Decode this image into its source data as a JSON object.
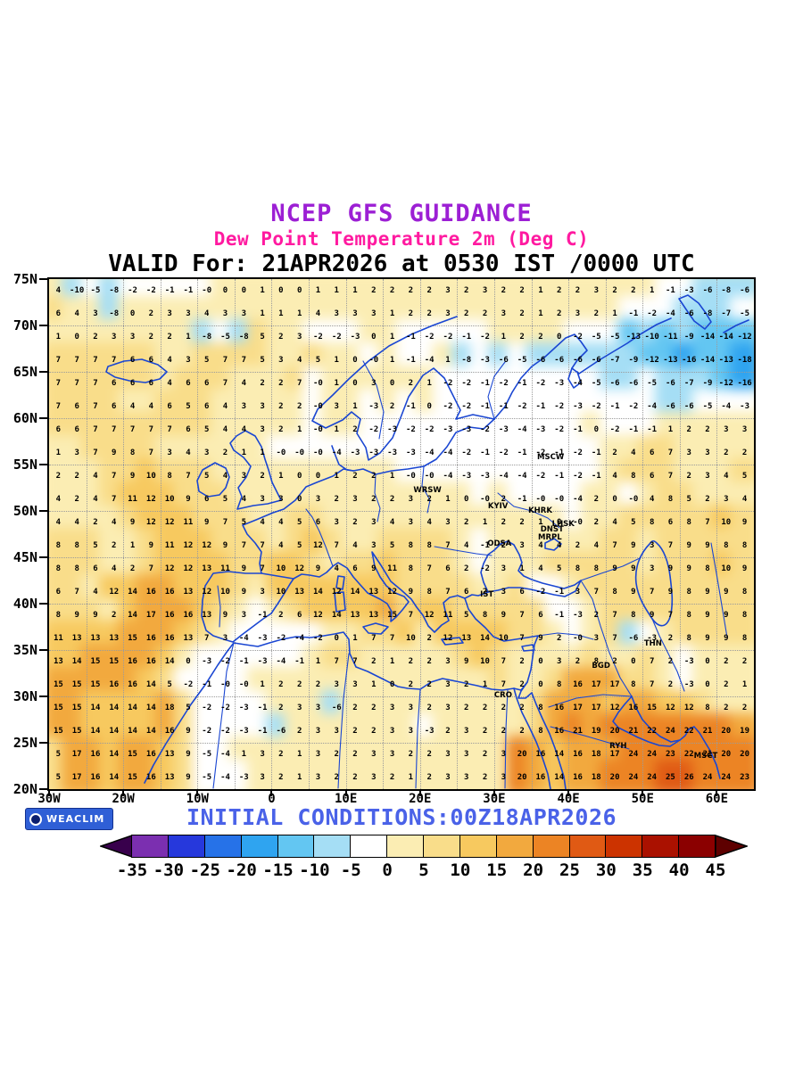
{
  "header": {
    "title": "NCEP GFS GUIDANCE",
    "subtitle": "Dew Point Temperature 2m (Deg C)",
    "valid_line": "VALID For: 21APR2026 at 0530 IST /0000 UTC",
    "title_color": "#9C1FD4",
    "subtitle_color": "#FF1AA0"
  },
  "footer": {
    "brand": "WEACLIM",
    "initial_conditions": "INITIAL CONDITIONS:00Z18APR2026",
    "text_color": "#4A62E8"
  },
  "map": {
    "coast_color": "#1A46D2",
    "lat_ticks": [
      {
        "label": "75N",
        "lat": 75
      },
      {
        "label": "70N",
        "lat": 70
      },
      {
        "label": "65N",
        "lat": 65
      },
      {
        "label": "60N",
        "lat": 60
      },
      {
        "label": "55N",
        "lat": 55
      },
      {
        "label": "50N",
        "lat": 50
      },
      {
        "label": "45N",
        "lat": 45
      },
      {
        "label": "40N",
        "lat": 40
      },
      {
        "label": "35N",
        "lat": 35
      },
      {
        "label": "30N",
        "lat": 30
      },
      {
        "label": "25N",
        "lat": 25
      },
      {
        "label": "20N",
        "lat": 20
      }
    ],
    "lon_ticks": [
      {
        "label": "30W",
        "lon": -30
      },
      {
        "label": "20W",
        "lon": -20
      },
      {
        "label": "10W",
        "lon": -10
      },
      {
        "label": "0",
        "lon": 0
      },
      {
        "label": "10E",
        "lon": 10
      },
      {
        "label": "20E",
        "lon": 20
      },
      {
        "label": "30E",
        "lon": 30
      },
      {
        "label": "40E",
        "lon": 40
      },
      {
        "label": "50E",
        "lon": 50
      },
      {
        "label": "60E",
        "lon": 60
      }
    ],
    "cities": [
      {
        "label": "MSCW",
        "lon": 37.6,
        "lat": 55.75
      },
      {
        "label": "WRSW",
        "lon": 21.0,
        "lat": 52.25
      },
      {
        "label": "KYIV",
        "lon": 30.5,
        "lat": 50.45
      },
      {
        "label": "KHRK",
        "lon": 36.2,
        "lat": 50.0
      },
      {
        "label": "LHSK",
        "lon": 39.3,
        "lat": 48.55
      },
      {
        "label": "DNST",
        "lon": 37.8,
        "lat": 48.0
      },
      {
        "label": "MRPL",
        "lon": 37.5,
        "lat": 47.1
      },
      {
        "label": "ODSA",
        "lon": 30.7,
        "lat": 46.45
      },
      {
        "label": "IST",
        "lon": 29.0,
        "lat": 41.0
      },
      {
        "label": "THN",
        "lon": 51.4,
        "lat": 35.7
      },
      {
        "label": "BGD",
        "lon": 44.4,
        "lat": 33.3
      },
      {
        "label": "CRO",
        "lon": 31.2,
        "lat": 30.05
      },
      {
        "label": "RYH",
        "lon": 46.7,
        "lat": 24.6
      },
      {
        "label": "MSCT",
        "lon": 58.5,
        "lat": 23.6
      }
    ]
  },
  "chart_data": {
    "type": "heatmap",
    "title": "NCEP GFS GUIDANCE",
    "subtitle": "Dew Point Temperature 2m (Deg C)",
    "valid": "VALID For: 21APR2026 at 0530 IST /0000 UTC",
    "initial_conditions": "INITIAL CONDITIONS:00Z18APR2026",
    "units": "Deg C",
    "x_axis": {
      "lon_min": -30,
      "lon_max": 65,
      "tick_labels": [
        "30W",
        "20W",
        "10W",
        "0",
        "10E",
        "20E",
        "30E",
        "40E",
        "50E",
        "60E"
      ]
    },
    "y_axis": {
      "lat_min": 20,
      "lat_max": 75,
      "tick_labels": [
        "75N",
        "70N",
        "65N",
        "60N",
        "55N",
        "50N",
        "45N",
        "40N",
        "35N",
        "30N",
        "25N",
        "20N"
      ]
    },
    "grid": {
      "lat_start": 73.75,
      "lat_step": -2.5,
      "lon_start": -28.75,
      "lon_step": 2.5,
      "rows": [
        [
          "4",
          "-10",
          "-5",
          "-8",
          "-2",
          "-2",
          "-1",
          "-1",
          "-0",
          "0",
          "0",
          "1",
          "0",
          "0",
          "1",
          "1",
          "1",
          "2",
          "2",
          "2",
          "2",
          "3",
          "2",
          "3",
          "2",
          "2",
          "1",
          "2",
          "2",
          "3",
          "2",
          "2",
          "1",
          "-1",
          "-3",
          "-6",
          "-8",
          "-6"
        ],
        [
          "6",
          "4",
          "3",
          "-8",
          "0",
          "2",
          "3",
          "3",
          "4",
          "3",
          "3",
          "1",
          "1",
          "1",
          "4",
          "3",
          "3",
          "3",
          "1",
          "2",
          "2",
          "3",
          "2",
          "2",
          "3",
          "2",
          "1",
          "2",
          "3",
          "2",
          "1",
          "-1",
          "-2",
          "-4",
          "-6",
          "-8",
          "-7",
          "-5"
        ],
        [
          "1",
          "0",
          "2",
          "3",
          "3",
          "2",
          "2",
          "1",
          "-8",
          "-5",
          "-8",
          "5",
          "2",
          "3",
          "-2",
          "-2",
          "-3",
          "0",
          "1",
          "-1",
          "-2",
          "-2",
          "-1",
          "-2",
          "1",
          "2",
          "2",
          "0",
          "-2",
          "-5",
          "-5",
          "-13",
          "-10",
          "-11",
          "-9",
          "-14",
          "-14",
          "-12"
        ],
        [
          "7",
          "7",
          "7",
          "7",
          "6",
          "6",
          "4",
          "3",
          "5",
          "7",
          "7",
          "5",
          "3",
          "4",
          "5",
          "1",
          "0",
          "-0",
          "1",
          "-1",
          "-4",
          "1",
          "-8",
          "-3",
          "-6",
          "-5",
          "-6",
          "-6",
          "-6",
          "-6",
          "-7",
          "-9",
          "-12",
          "-13",
          "-16",
          "-14",
          "-13",
          "-18"
        ],
        [
          "7",
          "7",
          "7",
          "6",
          "6",
          "6",
          "4",
          "6",
          "6",
          "7",
          "4",
          "2",
          "2",
          "7",
          "-0",
          "1",
          "0",
          "3",
          "0",
          "2",
          "1",
          "-2",
          "-2",
          "-1",
          "-2",
          "-1",
          "-2",
          "-3",
          "-4",
          "-5",
          "-6",
          "-6",
          "-5",
          "-6",
          "-7",
          "-9",
          "-12",
          "-16"
        ],
        [
          "7",
          "6",
          "7",
          "6",
          "4",
          "4",
          "6",
          "5",
          "6",
          "4",
          "3",
          "3",
          "2",
          "2",
          "-0",
          "3",
          "1",
          "-3",
          "2",
          "-1",
          "0",
          "-2",
          "-2",
          "-1",
          "-1",
          "-2",
          "-1",
          "-2",
          "-3",
          "-2",
          "-1",
          "-2",
          "-4",
          "-6",
          "-6",
          "-5",
          "-4",
          "-3"
        ],
        [
          "6",
          "6",
          "7",
          "7",
          "7",
          "7",
          "7",
          "6",
          "5",
          "4",
          "4",
          "3",
          "2",
          "1",
          "-0",
          "1",
          "2",
          "-2",
          "-3",
          "-2",
          "-2",
          "-3",
          "-3",
          "-2",
          "-3",
          "-4",
          "-3",
          "-2",
          "-1",
          "0",
          "-2",
          "-1",
          "-1",
          "1",
          "2",
          "2",
          "3",
          "3"
        ],
        [
          "1",
          "3",
          "7",
          "9",
          "8",
          "7",
          "3",
          "4",
          "3",
          "2",
          "1",
          "1",
          "-0",
          "-0",
          "-0",
          "-4",
          "-3",
          "-3",
          "-3",
          "-3",
          "-4",
          "-4",
          "-2",
          "-1",
          "-2",
          "-1",
          "-2",
          "-1",
          "-2",
          "-1",
          "2",
          "4",
          "6",
          "7",
          "3",
          "3",
          "2",
          "2"
        ],
        [
          "2",
          "2",
          "4",
          "7",
          "9",
          "10",
          "8",
          "7",
          "5",
          "4",
          "3",
          "2",
          "1",
          "0",
          "0",
          "1",
          "2",
          "2",
          "1",
          "-0",
          "-0",
          "-4",
          "-3",
          "-3",
          "-4",
          "-4",
          "-2",
          "-1",
          "-2",
          "-1",
          "4",
          "8",
          "6",
          "7",
          "2",
          "3",
          "4",
          "5"
        ],
        [
          "4",
          "2",
          "4",
          "7",
          "11",
          "12",
          "10",
          "9",
          "6",
          "5",
          "4",
          "3",
          "3",
          "0",
          "3",
          "2",
          "3",
          "2",
          "2",
          "3",
          "2",
          "1",
          "0",
          "-0",
          "2",
          "-1",
          "-0",
          "-0",
          "-4",
          "2",
          "0",
          "-0",
          "4",
          "8",
          "5",
          "2",
          "3",
          "4"
        ],
        [
          "4",
          "4",
          "2",
          "4",
          "9",
          "12",
          "12",
          "11",
          "9",
          "7",
          "5",
          "4",
          "4",
          "5",
          "6",
          "3",
          "2",
          "3",
          "4",
          "3",
          "4",
          "3",
          "2",
          "1",
          "2",
          "2",
          "1",
          "0",
          "-0",
          "2",
          "4",
          "5",
          "8",
          "6",
          "8",
          "7",
          "10",
          "9"
        ],
        [
          "8",
          "8",
          "5",
          "2",
          "1",
          "9",
          "11",
          "12",
          "12",
          "9",
          "7",
          "7",
          "4",
          "5",
          "12",
          "7",
          "4",
          "3",
          "5",
          "8",
          "8",
          "7",
          "4",
          "-1",
          "2",
          "3",
          "4",
          "4",
          "2",
          "4",
          "7",
          "9",
          "3",
          "7",
          "9",
          "9",
          "8",
          "8"
        ],
        [
          "8",
          "8",
          "6",
          "4",
          "2",
          "7",
          "12",
          "12",
          "13",
          "11",
          "9",
          "7",
          "10",
          "12",
          "9",
          "4",
          "6",
          "9",
          "11",
          "8",
          "7",
          "6",
          "2",
          "-2",
          "3",
          "1",
          "4",
          "5",
          "8",
          "8",
          "9",
          "9",
          "3",
          "9",
          "9",
          "8",
          "10",
          "9"
        ],
        [
          "6",
          "7",
          "4",
          "12",
          "14",
          "16",
          "16",
          "13",
          "12",
          "10",
          "9",
          "3",
          "10",
          "13",
          "14",
          "12",
          "14",
          "13",
          "12",
          "9",
          "8",
          "7",
          "6",
          "2",
          "3",
          "6",
          "-2",
          "-1",
          "3",
          "7",
          "8",
          "9",
          "7",
          "9",
          "8",
          "9",
          "9",
          "8"
        ],
        [
          "8",
          "9",
          "9",
          "2",
          "14",
          "17",
          "16",
          "16",
          "13",
          "9",
          "3",
          "-1",
          "2",
          "6",
          "12",
          "14",
          "13",
          "13",
          "15",
          "7",
          "12",
          "11",
          "5",
          "8",
          "9",
          "7",
          "6",
          "-1",
          "-3",
          "2",
          "7",
          "8",
          "9",
          "7",
          "8",
          "9",
          "9",
          "8"
        ],
        [
          "11",
          "13",
          "13",
          "13",
          "15",
          "16",
          "16",
          "13",
          "7",
          "3",
          "-4",
          "-3",
          "-2",
          "-4",
          "-2",
          "0",
          "1",
          "7",
          "7",
          "10",
          "2",
          "12",
          "13",
          "14",
          "10",
          "7",
          "9",
          "2",
          "-0",
          "3",
          "7",
          "-6",
          "-3",
          "2",
          "8",
          "9",
          "9",
          "8"
        ],
        [
          "13",
          "14",
          "15",
          "15",
          "16",
          "16",
          "14",
          "0",
          "-3",
          "-2",
          "-1",
          "-3",
          "-4",
          "-1",
          "1",
          "7",
          "7",
          "2",
          "1",
          "2",
          "2",
          "3",
          "9",
          "10",
          "7",
          "2",
          "0",
          "3",
          "2",
          "8",
          "2",
          "0",
          "7",
          "2",
          "-3",
          "0",
          "2",
          "2"
        ],
        [
          "15",
          "15",
          "15",
          "16",
          "16",
          "14",
          "5",
          "-2",
          "-1",
          "-0",
          "-0",
          "1",
          "2",
          "2",
          "2",
          "3",
          "3",
          "1",
          "0",
          "2",
          "2",
          "3",
          "2",
          "1",
          "7",
          "2",
          "0",
          "8",
          "16",
          "17",
          "17",
          "8",
          "7",
          "2",
          "-3",
          "0",
          "2",
          "1"
        ],
        [
          "15",
          "15",
          "14",
          "14",
          "14",
          "14",
          "18",
          "5",
          "-2",
          "-2",
          "-3",
          "-1",
          "2",
          "3",
          "3",
          "-6",
          "2",
          "2",
          "3",
          "3",
          "2",
          "3",
          "2",
          "2",
          "2",
          "2",
          "8",
          "16",
          "17",
          "17",
          "12",
          "16",
          "15",
          "12",
          "12",
          "8",
          "2",
          "2"
        ],
        [
          "15",
          "15",
          "14",
          "14",
          "14",
          "14",
          "16",
          "9",
          "-2",
          "-2",
          "-3",
          "-1",
          "-6",
          "2",
          "3",
          "3",
          "2",
          "2",
          "3",
          "3",
          "-3",
          "2",
          "3",
          "2",
          "2",
          "2",
          "8",
          "16",
          "21",
          "19",
          "20",
          "21",
          "22",
          "24",
          "22",
          "21",
          "20",
          "19"
        ],
        [
          "5",
          "17",
          "16",
          "14",
          "15",
          "16",
          "13",
          "9",
          "-5",
          "-4",
          "1",
          "3",
          "2",
          "1",
          "3",
          "2",
          "2",
          "3",
          "3",
          "2",
          "2",
          "3",
          "3",
          "2",
          "3",
          "20",
          "16",
          "14",
          "16",
          "18",
          "17",
          "24",
          "24",
          "23",
          "22",
          "21",
          "20",
          "20"
        ],
        [
          "5",
          "17",
          "16",
          "14",
          "15",
          "16",
          "13",
          "9",
          "-5",
          "-4",
          "-3",
          "3",
          "2",
          "1",
          "3",
          "2",
          "2",
          "3",
          "2",
          "1",
          "2",
          "3",
          "3",
          "2",
          "3",
          "20",
          "16",
          "14",
          "16",
          "18",
          "20",
          "24",
          "24",
          "25",
          "26",
          "24",
          "24",
          "23"
        ]
      ]
    },
    "colorbar": {
      "thresholds": [
        -35,
        -30,
        -25,
        -20,
        -15,
        -10,
        -5,
        0,
        5,
        10,
        15,
        20,
        25,
        30,
        35,
        40,
        45
      ],
      "labels": [
        "-35",
        "-30",
        "-25",
        "-20",
        "-15",
        "-10",
        "-5",
        "0",
        "5",
        "10",
        "15",
        "20",
        "25",
        "30",
        "35",
        "40",
        "45"
      ],
      "colors": [
        "#38004C",
        "#7B2FB0",
        "#2638DC",
        "#2672E8",
        "#2FA4F0",
        "#63C6F2",
        "#A5DEF5",
        "#FFFFFF",
        "#FBEDB3",
        "#F9DD8A",
        "#F7C95F",
        "#F2A93E",
        "#EC8424",
        "#E05A14",
        "#CC3300",
        "#AA1100",
        "#8B0000",
        "#5E0000"
      ]
    }
  }
}
